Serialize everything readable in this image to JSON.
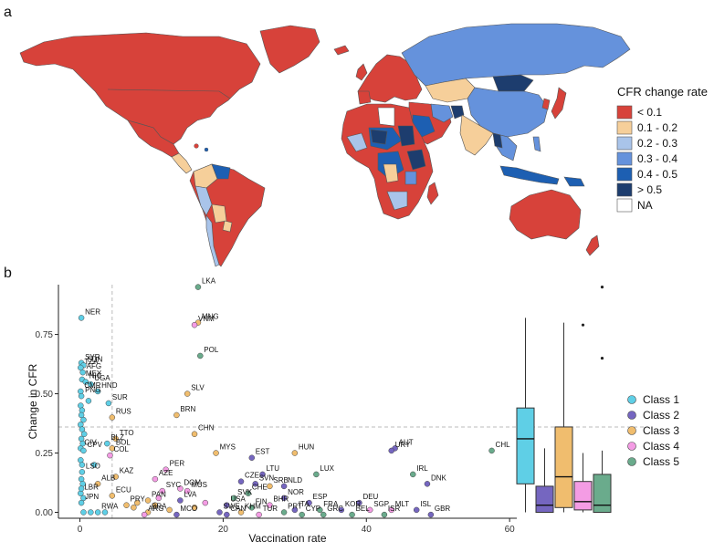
{
  "panel_labels": {
    "a": "a",
    "b": "b"
  },
  "map": {
    "legend_title": "CFR change rate",
    "legend": [
      {
        "label": "< 0.1",
        "color": "#d7423a"
      },
      {
        "label": "0.1 - 0.2",
        "color": "#f6cf9a"
      },
      {
        "label": "0.2 - 0.3",
        "color": "#a9c4ea"
      },
      {
        "label": "0.3 - 0.4",
        "color": "#6592dc"
      },
      {
        "label": "0.4 - 0.5",
        "color": "#1d5fb2"
      },
      {
        "label": "> 0.5",
        "color": "#1d3d6e"
      },
      {
        "label": "NA",
        "color": "#ffffff"
      }
    ],
    "ocean_color": "#ffffff",
    "border_color": "#555555"
  },
  "chart_data": {
    "type": "scatter",
    "xlabel": "Vaccination rate",
    "ylabel": "Change in CFR",
    "xlim": [
      -3,
      61
    ],
    "ylim": [
      -0.025,
      0.96
    ],
    "xticks": [
      0,
      20,
      40,
      60
    ],
    "yticks": [
      0.0,
      0.25,
      0.5,
      0.75
    ],
    "ytick_labels": [
      "0.00",
      "0.25",
      "0.50",
      "0.75"
    ],
    "reference_lines": {
      "x": 4.5,
      "y": 0.36
    },
    "classes": [
      {
        "name": "Class 1",
        "color": "#5fcfe6"
      },
      {
        "name": "Class 2",
        "color": "#7566c0"
      },
      {
        "name": "Class 3",
        "color": "#f0bd6e"
      },
      {
        "name": "Class 4",
        "color": "#f49ce4"
      },
      {
        "name": "Class 5",
        "color": "#6aab8c"
      }
    ],
    "points": [
      {
        "label": "NER",
        "x": 0.2,
        "y": 0.82,
        "cls": 0
      },
      {
        "label": "LKA",
        "x": 16.5,
        "y": 0.95,
        "cls": 4
      },
      {
        "label": "MNG",
        "x": 16.5,
        "y": 0.8,
        "cls": 2
      },
      {
        "label": "VNM",
        "x": 16.0,
        "y": 0.79,
        "cls": 3
      },
      {
        "label": "POL",
        "x": 16.8,
        "y": 0.66,
        "cls": 4
      },
      {
        "label": "SYR",
        "x": 0.2,
        "y": 0.63,
        "cls": 0
      },
      {
        "label": "SDN",
        "x": 0.5,
        "y": 0.62,
        "cls": 0
      },
      {
        "label": "TZA",
        "x": 0.1,
        "y": 0.61,
        "cls": 0
      },
      {
        "label": "AFG",
        "x": 0.4,
        "y": 0.59,
        "cls": 0
      },
      {
        "label": "MEX",
        "x": 0.3,
        "y": 0.56,
        "cls": 0
      },
      {
        "label": "NIC",
        "x": 0.8,
        "y": 0.55,
        "cls": 0
      },
      {
        "label": "UGA",
        "x": 1.5,
        "y": 0.54,
        "cls": 0
      },
      {
        "label": "CMR",
        "x": 0.1,
        "y": 0.51,
        "cls": 0
      },
      {
        "label": "HND",
        "x": 2.5,
        "y": 0.51,
        "cls": 0
      },
      {
        "label": "PNG",
        "x": 0.2,
        "y": 0.49,
        "cls": 0
      },
      {
        "label": "SUR",
        "x": 4.0,
        "y": 0.46,
        "cls": 0
      },
      {
        "label": "SLV",
        "x": 15.0,
        "y": 0.5,
        "cls": 2
      },
      {
        "label": "BRN",
        "x": 13.5,
        "y": 0.41,
        "cls": 2
      },
      {
        "label": "RUS",
        "x": 4.5,
        "y": 0.4,
        "cls": 2
      },
      {
        "label": "TTO",
        "x": 5.0,
        "y": 0.31,
        "cls": 2
      },
      {
        "label": "BLZ",
        "x": 3.8,
        "y": 0.29,
        "cls": 0
      },
      {
        "label": "BOL",
        "x": 4.5,
        "y": 0.27,
        "cls": 2
      },
      {
        "label": "CHN",
        "x": 16.0,
        "y": 0.33,
        "cls": 2
      },
      {
        "label": "CIV",
        "x": 0.1,
        "y": 0.27,
        "cls": 0
      },
      {
        "label": "CPV",
        "x": 0.5,
        "y": 0.26,
        "cls": 0
      },
      {
        "label": "COL",
        "x": 4.2,
        "y": 0.24,
        "cls": 3
      },
      {
        "label": "MYS",
        "x": 19.0,
        "y": 0.25,
        "cls": 2
      },
      {
        "label": "HUN",
        "x": 30.0,
        "y": 0.25,
        "cls": 2
      },
      {
        "label": "AUT",
        "x": 44.0,
        "y": 0.27,
        "cls": 1
      },
      {
        "label": "URY",
        "x": 43.5,
        "y": 0.26,
        "cls": 1
      },
      {
        "label": "CHL",
        "x": 57.5,
        "y": 0.26,
        "cls": 4
      },
      {
        "label": "EST",
        "x": 24.0,
        "y": 0.23,
        "cls": 1
      },
      {
        "label": "IRL",
        "x": 46.5,
        "y": 0.16,
        "cls": 4
      },
      {
        "label": "DNK",
        "x": 48.5,
        "y": 0.12,
        "cls": 1
      },
      {
        "label": "LSO",
        "x": 0.3,
        "y": 0.17,
        "cls": 0
      },
      {
        "label": "KAZ",
        "x": 5.0,
        "y": 0.15,
        "cls": 2
      },
      {
        "label": "AZE",
        "x": 10.5,
        "y": 0.14,
        "cls": 3
      },
      {
        "label": "PER",
        "x": 12.0,
        "y": 0.18,
        "cls": 3
      },
      {
        "label": "LTU",
        "x": 25.5,
        "y": 0.16,
        "cls": 1
      },
      {
        "label": "LUX",
        "x": 33.0,
        "y": 0.16,
        "cls": 4
      },
      {
        "label": "CZE",
        "x": 22.5,
        "y": 0.13,
        "cls": 1
      },
      {
        "label": "SVN",
        "x": 24.5,
        "y": 0.12,
        "cls": 1
      },
      {
        "label": "SRB",
        "x": 26.5,
        "y": 0.11,
        "cls": 2
      },
      {
        "label": "NLD",
        "x": 28.5,
        "y": 0.11,
        "cls": 1
      },
      {
        "label": "ALB",
        "x": 2.5,
        "y": 0.12,
        "cls": 2
      },
      {
        "label": "SYC",
        "x": 11.5,
        "y": 0.09,
        "cls": 3
      },
      {
        "label": "DOM",
        "x": 14.0,
        "y": 0.1,
        "cls": 3
      },
      {
        "label": "MUS",
        "x": 15.0,
        "y": 0.09,
        "cls": 3
      },
      {
        "label": "CHE",
        "x": 23.5,
        "y": 0.08,
        "cls": 4
      },
      {
        "label": "NOR",
        "x": 28.5,
        "y": 0.06,
        "cls": 1
      },
      {
        "label": "LBR",
        "x": 0.1,
        "y": 0.08,
        "cls": 0
      },
      {
        "label": "ECU",
        "x": 4.5,
        "y": 0.07,
        "cls": 2
      },
      {
        "label": "SVK",
        "x": 21.5,
        "y": 0.06,
        "cls": 4
      },
      {
        "label": "PAN",
        "x": 9.5,
        "y": 0.05,
        "cls": 2
      },
      {
        "label": "LVA",
        "x": 14.0,
        "y": 0.05,
        "cls": 1
      },
      {
        "label": "BHR",
        "x": 26.5,
        "y": 0.03,
        "cls": 3
      },
      {
        "label": "ESP",
        "x": 32.0,
        "y": 0.04,
        "cls": 1
      },
      {
        "label": "DEU",
        "x": 39.0,
        "y": 0.04,
        "cls": 1
      },
      {
        "label": "JPN",
        "x": 0.2,
        "y": 0.04,
        "cls": 0
      },
      {
        "label": "PRY",
        "x": 6.5,
        "y": 0.03,
        "cls": 2
      },
      {
        "label": "USA",
        "x": 20.5,
        "y": 0.03,
        "cls": 1
      },
      {
        "label": "FIN",
        "x": 24.0,
        "y": 0.02,
        "cls": 4
      },
      {
        "label": "ITA",
        "x": 30.0,
        "y": 0.01,
        "cls": 1
      },
      {
        "label": "FRA",
        "x": 33.5,
        "y": 0.01,
        "cls": 4
      },
      {
        "label": "KOR",
        "x": 36.5,
        "y": 0.01,
        "cls": 1
      },
      {
        "label": "SGP",
        "x": 40.5,
        "y": 0.01,
        "cls": 3
      },
      {
        "label": "MLT",
        "x": 43.5,
        "y": 0.01,
        "cls": 3
      },
      {
        "label": "ISL",
        "x": 47.0,
        "y": 0.01,
        "cls": 1
      },
      {
        "label": "RWA",
        "x": 2.5,
        "y": 0.0,
        "cls": 0
      },
      {
        "label": "BRA",
        "x": 9.5,
        "y": 0.0,
        "cls": 2
      },
      {
        "label": "SWE",
        "x": 19.5,
        "y": 0.0,
        "cls": 1
      },
      {
        "label": "KHM",
        "x": 22.5,
        "y": 0.0,
        "cls": 2
      },
      {
        "label": "PRT",
        "x": 28.5,
        "y": 0.0,
        "cls": 4
      },
      {
        "label": "ARG",
        "x": 9.0,
        "y": -0.01,
        "cls": 3
      },
      {
        "label": "MCO",
        "x": 13.5,
        "y": -0.01,
        "cls": 1
      },
      {
        "label": "CAN",
        "x": 20.5,
        "y": -0.01,
        "cls": 1
      },
      {
        "label": "TUR",
        "x": 25.0,
        "y": -0.01,
        "cls": 3
      },
      {
        "label": "CYP",
        "x": 31.0,
        "y": -0.01,
        "cls": 4
      },
      {
        "label": "GRC",
        "x": 34.0,
        "y": -0.01,
        "cls": 4
      },
      {
        "label": "BEL",
        "x": 38.0,
        "y": -0.01,
        "cls": 4
      },
      {
        "label": "ISR",
        "x": 42.5,
        "y": -0.01,
        "cls": 4
      },
      {
        "label": "GBR",
        "x": 49.0,
        "y": -0.01,
        "cls": 1
      },
      {
        "label": "",
        "x": 0.1,
        "y": 0.45,
        "cls": 0
      },
      {
        "label": "",
        "x": 0.3,
        "y": 0.43,
        "cls": 0
      },
      {
        "label": "",
        "x": 0.2,
        "y": 0.41,
        "cls": 0
      },
      {
        "label": "",
        "x": 0.5,
        "y": 0.39,
        "cls": 0
      },
      {
        "label": "",
        "x": 0.1,
        "y": 0.37,
        "cls": 0
      },
      {
        "label": "",
        "x": 0.3,
        "y": 0.35,
        "cls": 0
      },
      {
        "label": "",
        "x": 0.6,
        "y": 0.33,
        "cls": 0
      },
      {
        "label": "",
        "x": 0.2,
        "y": 0.31,
        "cls": 0
      },
      {
        "label": "",
        "x": 0.4,
        "y": 0.29,
        "cls": 0
      },
      {
        "label": "",
        "x": 0.1,
        "y": 0.22,
        "cls": 0
      },
      {
        "label": "",
        "x": 0.3,
        "y": 0.2,
        "cls": 0
      },
      {
        "label": "",
        "x": 0.2,
        "y": 0.14,
        "cls": 0
      },
      {
        "label": "",
        "x": 0.4,
        "y": 0.12,
        "cls": 0
      },
      {
        "label": "",
        "x": 0.2,
        "y": 0.1,
        "cls": 0
      },
      {
        "label": "",
        "x": 0.5,
        "y": 0.06,
        "cls": 0
      },
      {
        "label": "",
        "x": 1.5,
        "y": 0.0,
        "cls": 0
      },
      {
        "label": "",
        "x": 0.5,
        "y": 0.0,
        "cls": 0
      },
      {
        "label": "",
        "x": 3.5,
        "y": 0.0,
        "cls": 0
      },
      {
        "label": "",
        "x": 1.2,
        "y": 0.47,
        "cls": 0
      },
      {
        "label": "",
        "x": 2.0,
        "y": 0.2,
        "cls": 0
      },
      {
        "label": "",
        "x": 7.5,
        "y": 0.02,
        "cls": 2
      },
      {
        "label": "",
        "x": 8.0,
        "y": 0.04,
        "cls": 2
      },
      {
        "label": "",
        "x": 10.5,
        "y": 0.03,
        "cls": 2
      },
      {
        "label": "",
        "x": 12.5,
        "y": 0.01,
        "cls": 2
      },
      {
        "label": "",
        "x": 11.0,
        "y": 0.06,
        "cls": 3
      },
      {
        "label": "",
        "x": 16.0,
        "y": 0.02,
        "cls": 2
      },
      {
        "label": "",
        "x": 17.5,
        "y": 0.04,
        "cls": 3
      }
    ],
    "boxplots": [
      {
        "name": "Class 1",
        "min": 0.0,
        "q1": 0.12,
        "median": 0.31,
        "q3": 0.44,
        "max": 0.82,
        "outliers": []
      },
      {
        "name": "Class 2",
        "min": 0.0,
        "q1": 0.0,
        "median": 0.03,
        "q3": 0.11,
        "max": 0.27,
        "outliers": []
      },
      {
        "name": "Class 3",
        "min": 0.0,
        "q1": 0.02,
        "median": 0.15,
        "q3": 0.36,
        "max": 0.8,
        "outliers": []
      },
      {
        "name": "Class 4",
        "min": 0.0,
        "q1": 0.01,
        "median": 0.045,
        "q3": 0.13,
        "max": 0.25,
        "outliers": [
          0.79
        ]
      },
      {
        "name": "Class 5",
        "min": 0.0,
        "q1": 0.0,
        "median": 0.03,
        "q3": 0.16,
        "max": 0.26,
        "outliers": [
          0.65,
          0.95
        ]
      }
    ]
  }
}
